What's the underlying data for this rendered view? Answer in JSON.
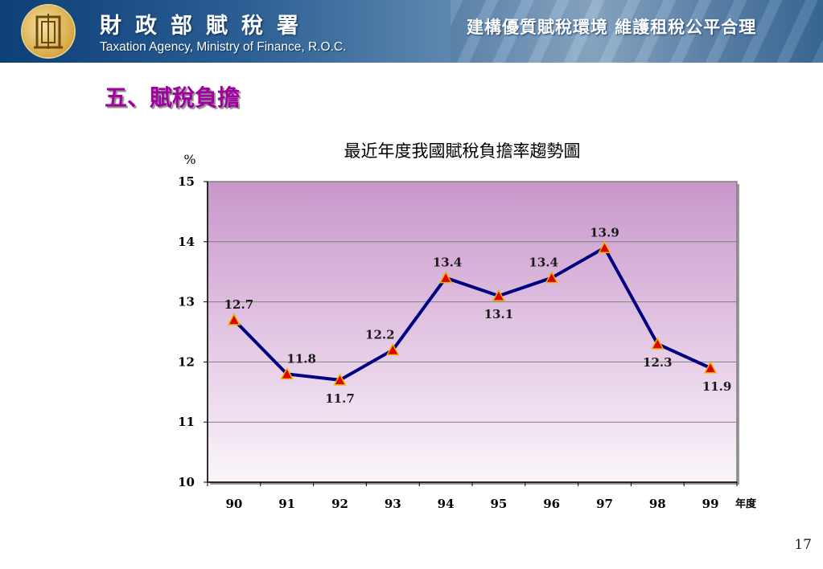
{
  "header": {
    "agency_cn": "財政部賦稅署",
    "agency_en": "Taxation Agency, Ministry of Finance, R.O.C.",
    "slogan": "建構優質賦稅環境  維護租稅公平合理",
    "logo_icon": "emblem-icon"
  },
  "section_title": "五、賦稅負擔",
  "page_number": "17",
  "colors": {
    "line": "#000080",
    "marker": "#e00000",
    "marker_outline": "#e8b800",
    "plot_top": "#c997cb",
    "plot_bottom": "#fbf5fb",
    "title": "#a000a0"
  },
  "chart_data": {
    "type": "line",
    "title": "最近年度我國賦稅負擔率趨勢圖",
    "ylabel": "%",
    "xlabel": "年度",
    "ylim": [
      10,
      15
    ],
    "yticks": [
      10,
      11,
      12,
      13,
      14,
      15
    ],
    "grid": true,
    "x": [
      "90",
      "91",
      "92",
      "93",
      "94",
      "95",
      "96",
      "97",
      "98",
      "99"
    ],
    "values": [
      12.7,
      11.8,
      11.7,
      12.2,
      13.4,
      13.1,
      13.4,
      13.9,
      12.3,
      11.9
    ],
    "labels": [
      "12.7",
      "11.8",
      "11.7",
      "12.2",
      "13.4",
      "13.1",
      "13.4",
      "13.9",
      "12.3",
      "11.9"
    ]
  }
}
